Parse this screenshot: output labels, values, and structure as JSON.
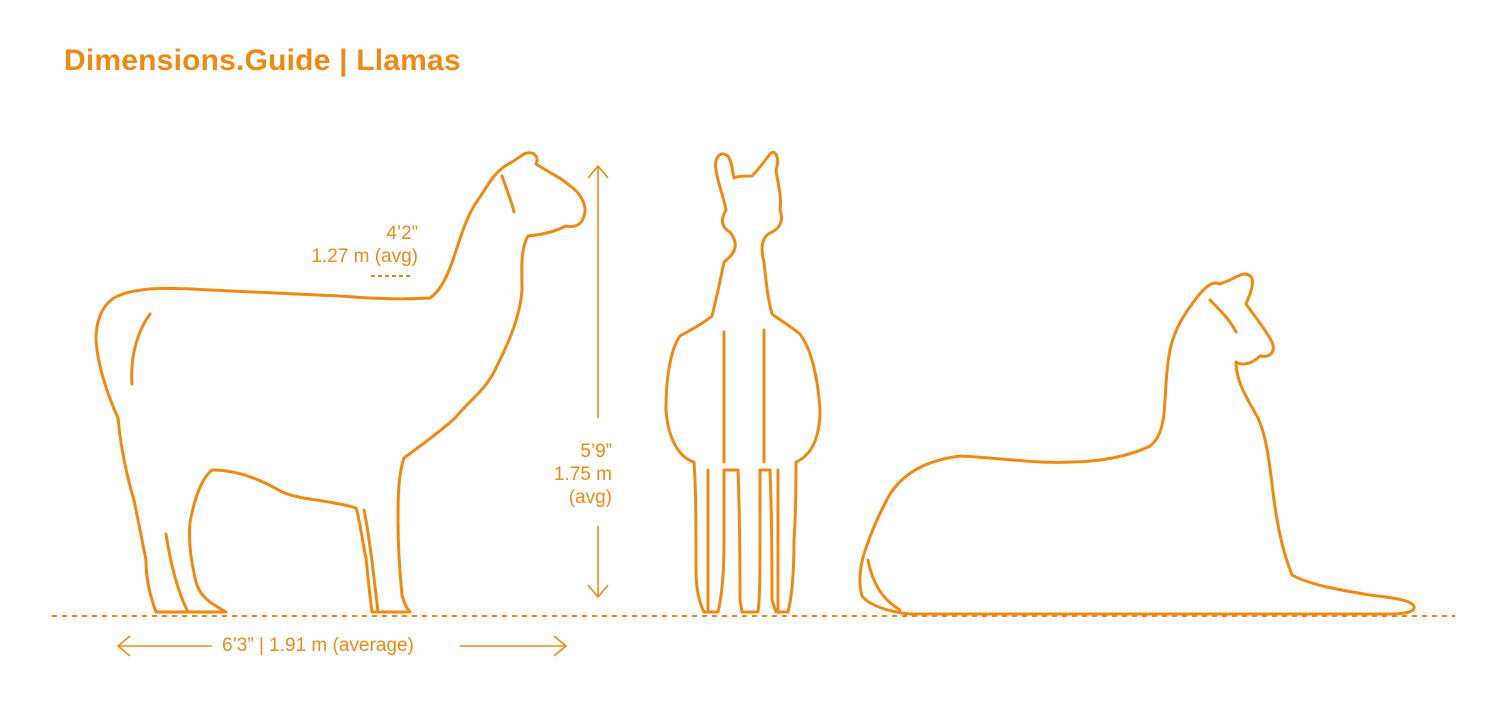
{
  "title": "Dimensions.Guide | Llamas",
  "dimensions": {
    "shoulder_imperial": "4’2”",
    "shoulder_metric": "1.27 m (avg)",
    "height_imperial": "5’9”",
    "height_metric": "1.75 m",
    "height_note": "(avg)",
    "length": "6’3” | 1.91 m (average)"
  },
  "colors": {
    "accent": "#EE8A14",
    "background": "#FFFFFF"
  }
}
